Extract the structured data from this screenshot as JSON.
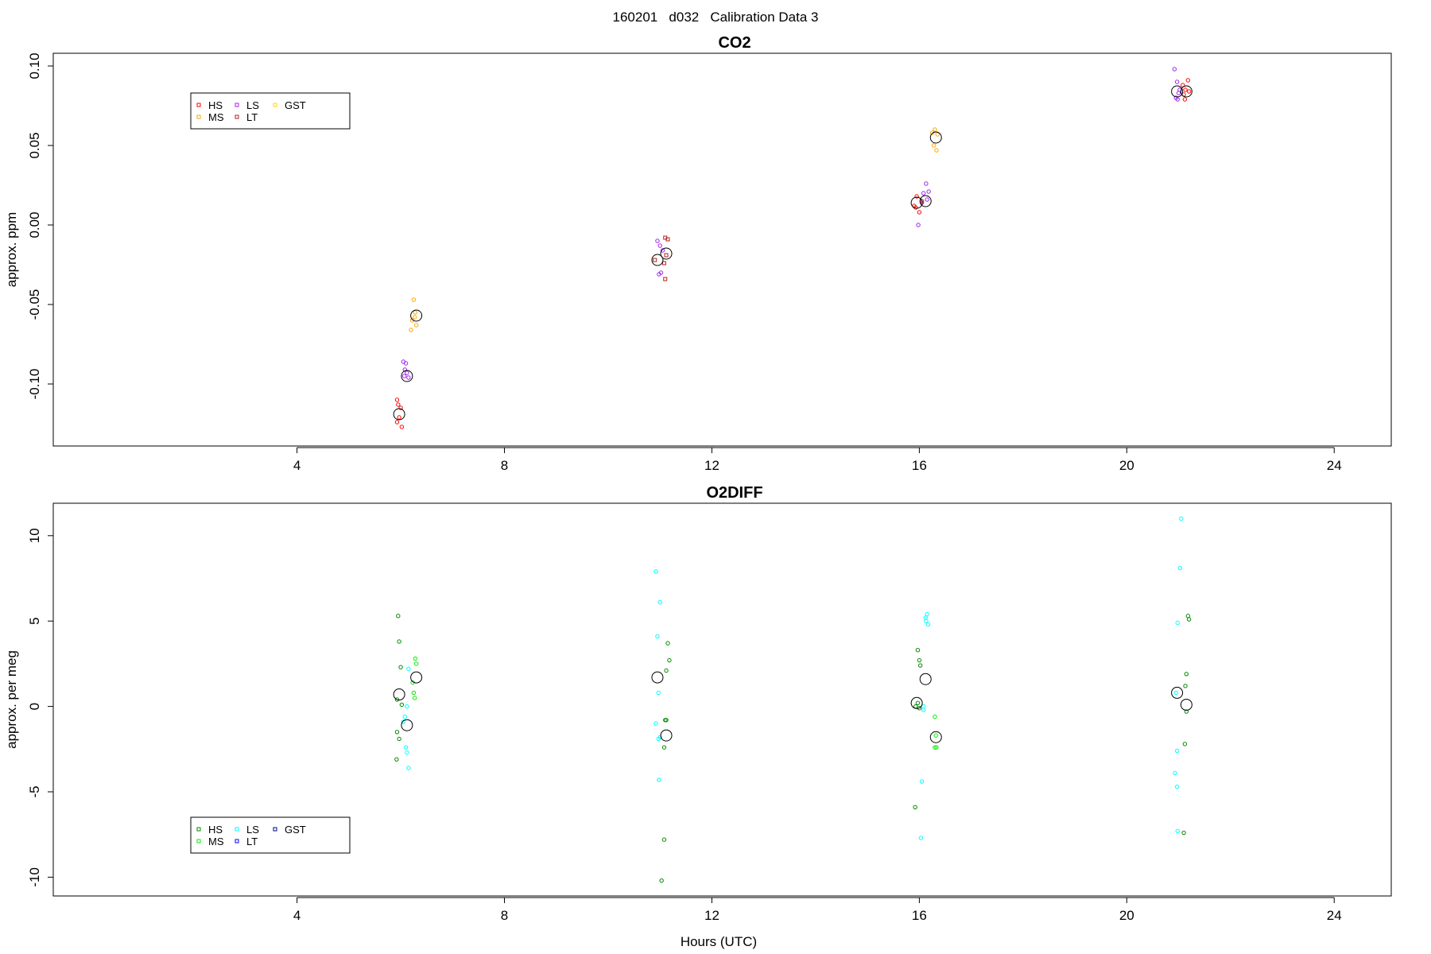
{
  "figure": {
    "header": "160201   d032   Calibration Data 3",
    "xlabel": "Hours (UTC)"
  },
  "chart_data": [
    {
      "type": "scatter",
      "title": "CO2",
      "ylabel": "approx. ppm",
      "xlim": [
        -0.7,
        25.1
      ],
      "ylim": [
        -0.139,
        0.108
      ],
      "xticks": [
        4,
        8,
        12,
        16,
        20,
        24
      ],
      "yticks": [
        -0.1,
        -0.05,
        0.0,
        0.05,
        0.1
      ],
      "ytick_labels": [
        "-0.10",
        "-0.05",
        "0.00",
        "0.05",
        "0.10"
      ],
      "legend": {
        "position": "top-left",
        "entries": [
          {
            "label": "HS",
            "color": "#ff0000"
          },
          {
            "label": "MS",
            "color": "#ffa500"
          },
          {
            "label": "LS",
            "color": "#a020f0"
          },
          {
            "label": "LT",
            "color": "#b22222"
          },
          {
            "label": "GST",
            "color": "#ffd700"
          }
        ]
      },
      "series": [
        {
          "name": "HS",
          "color": "#ff0000",
          "x": [
            5.93,
            5.95,
            6.0,
            5.97,
            6.02,
            5.93,
            15.95,
            15.9,
            16.0,
            16.05,
            15.93,
            21.08,
            21.13,
            21.18,
            21.12,
            21.2,
            21.1
          ],
          "y": [
            -0.11,
            -0.113,
            -0.115,
            -0.121,
            -0.127,
            -0.124,
            0.018,
            0.012,
            0.008,
            0.015,
            0.011,
            0.088,
            0.085,
            0.091,
            0.079,
            0.084,
            0.082
          ]
        },
        {
          "name": "MS",
          "color": "#ffa500",
          "x": [
            6.25,
            6.28,
            6.22,
            6.3,
            6.2,
            6.27,
            16.3,
            16.35,
            16.28,
            16.33,
            16.25
          ],
          "y": [
            -0.047,
            -0.055,
            -0.06,
            -0.063,
            -0.066,
            -0.058,
            0.06,
            0.057,
            0.05,
            0.047,
            0.058
          ]
        },
        {
          "name": "LS",
          "color": "#a020f0",
          "x": [
            6.05,
            6.1,
            6.12,
            6.08,
            6.15,
            6.07,
            10.95,
            11.0,
            11.05,
            10.98,
            11.02,
            15.98,
            16.08,
            16.13,
            16.18,
            16.05,
            16.15,
            20.92,
            20.97,
            21.02,
            20.95,
            21.0,
            20.98
          ],
          "y": [
            -0.086,
            -0.087,
            -0.093,
            -0.091,
            -0.096,
            -0.095,
            -0.01,
            -0.013,
            -0.016,
            -0.031,
            -0.03,
            0.0,
            0.02,
            0.026,
            0.021,
            0.014,
            0.016,
            0.098,
            0.09,
            0.085,
            0.08,
            0.083,
            0.079
          ]
        },
        {
          "name": "LT",
          "color": "#b22222",
          "x": [
            11.1,
            11.15,
            11.12,
            11.08,
            11.1,
            10.9
          ],
          "y": [
            -0.008,
            -0.009,
            -0.019,
            -0.024,
            -0.034,
            -0.022
          ],
          "marker": "square"
        }
      ],
      "means": {
        "x": [
          5.97,
          6.12,
          6.3,
          10.95,
          11.12,
          15.95,
          16.12,
          16.32,
          20.97,
          21.15
        ],
        "y": [
          -0.119,
          -0.095,
          -0.057,
          -0.022,
          -0.018,
          0.014,
          0.015,
          0.055,
          0.084,
          0.084
        ]
      }
    },
    {
      "type": "scatter",
      "title": "O2DIFF",
      "ylabel": "approx. per meg",
      "xlim": [
        -0.7,
        25.1
      ],
      "ylim": [
        -11.1,
        11.9
      ],
      "xticks": [
        4,
        8,
        12,
        16,
        20,
        24
      ],
      "yticks": [
        -10,
        -5,
        0,
        5,
        10
      ],
      "ytick_labels": [
        "-10",
        "-5",
        "0",
        "5",
        "10"
      ],
      "legend": {
        "position": "bottom-left",
        "entries": [
          {
            "label": "HS",
            "color": "#008b00"
          },
          {
            "label": "MS",
            "color": "#00ee00"
          },
          {
            "label": "LS",
            "color": "#00ffff"
          },
          {
            "label": "LT",
            "color": "#0000ff"
          },
          {
            "label": "GST",
            "color": "#00008b"
          }
        ]
      },
      "series": [
        {
          "name": "HS",
          "color": "#008b00",
          "x": [
            5.95,
            5.97,
            6.0,
            6.02,
            5.93,
            5.93,
            5.97,
            5.92,
            11.15,
            11.18,
            11.12,
            11.1,
            11.12,
            11.08,
            11.08,
            11.03,
            15.97,
            16.0,
            16.02,
            15.97,
            15.93,
            16.0,
            15.92,
            21.18,
            21.2,
            21.15,
            21.13,
            21.15,
            21.12,
            21.1
          ],
          "y": [
            5.3,
            3.8,
            2.3,
            0.1,
            0.4,
            -1.5,
            -1.9,
            -3.1,
            3.7,
            2.7,
            2.1,
            -0.8,
            -0.8,
            -2.4,
            -7.8,
            -10.2,
            3.3,
            2.7,
            2.4,
            0.2,
            0.0,
            -0.1,
            -5.9,
            5.3,
            5.1,
            1.9,
            1.2,
            -0.3,
            -2.2,
            -7.4
          ]
        },
        {
          "name": "MS",
          "color": "#00ee00",
          "x": [
            6.28,
            6.3,
            6.25,
            6.27,
            6.23,
            16.3,
            16.32,
            16.33,
            16.3
          ],
          "y": [
            2.8,
            2.5,
            0.8,
            0.5,
            1.4,
            -0.6,
            -1.7,
            -2.4,
            -2.4
          ]
        },
        {
          "name": "LS",
          "color": "#00ffff",
          "x": [
            6.15,
            6.12,
            6.08,
            6.05,
            6.1,
            6.12,
            6.15,
            10.92,
            11.0,
            10.95,
            10.97,
            10.92,
            10.98,
            11.0,
            10.97,
            16.12,
            16.15,
            16.13,
            16.17,
            16.08,
            16.05,
            16.03,
            16.08,
            21.05,
            21.03,
            20.98,
            20.95,
            20.97,
            20.93,
            20.97,
            20.98
          ],
          "y": [
            2.2,
            0.0,
            -0.6,
            -0.9,
            -2.4,
            -2.7,
            -3.6,
            7.9,
            6.1,
            4.1,
            0.8,
            -1.0,
            -4.3,
            -1.8,
            -1.9,
            5.2,
            5.4,
            5.0,
            4.8,
            0.0,
            -4.4,
            -7.7,
            -0.2,
            11.0,
            8.1,
            4.9,
            0.8,
            -2.6,
            -3.9,
            -4.7,
            -7.3
          ]
        }
      ],
      "means": {
        "x": [
          5.97,
          6.12,
          6.3,
          10.95,
          11.12,
          15.95,
          16.12,
          16.32,
          20.97,
          21.15
        ],
        "y": [
          0.7,
          -1.1,
          1.7,
          1.7,
          -1.7,
          0.2,
          1.6,
          -1.8,
          0.8,
          0.1
        ]
      }
    }
  ]
}
